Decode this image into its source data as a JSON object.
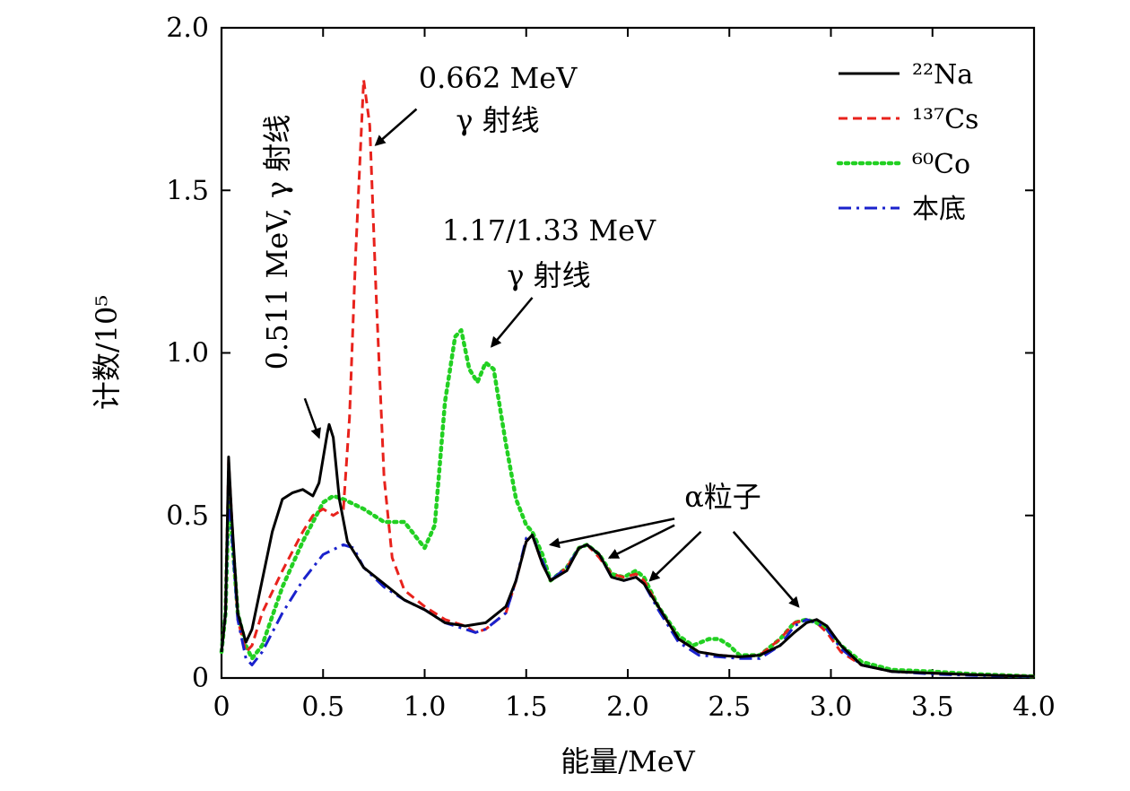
{
  "chart_data": {
    "type": "line",
    "xlabel": "能量/MeV",
    "ylabel": "计数/10⁵",
    "xlim": [
      0,
      4.0
    ],
    "ylim": [
      0,
      2.0
    ],
    "xticks": [
      "0",
      "0.5",
      "1.0",
      "1.5",
      "2.0",
      "2.5",
      "3.0",
      "3.5",
      "4.0"
    ],
    "yticks": [
      "0",
      "0.5",
      "1.0",
      "1.5",
      "2.0"
    ],
    "grid": false,
    "legend_position": "top-right",
    "series": [
      {
        "name": "²²Na",
        "color": "#000000",
        "dash": "solid",
        "points": [
          [
            0,
            0.08
          ],
          [
            0.02,
            0.2
          ],
          [
            0.035,
            0.68
          ],
          [
            0.05,
            0.5
          ],
          [
            0.08,
            0.2
          ],
          [
            0.12,
            0.11
          ],
          [
            0.15,
            0.15
          ],
          [
            0.2,
            0.3
          ],
          [
            0.25,
            0.45
          ],
          [
            0.3,
            0.55
          ],
          [
            0.35,
            0.57
          ],
          [
            0.4,
            0.58
          ],
          [
            0.45,
            0.56
          ],
          [
            0.48,
            0.6
          ],
          [
            0.52,
            0.75
          ],
          [
            0.53,
            0.78
          ],
          [
            0.55,
            0.74
          ],
          [
            0.58,
            0.55
          ],
          [
            0.62,
            0.42
          ],
          [
            0.7,
            0.34
          ],
          [
            0.8,
            0.29
          ],
          [
            0.9,
            0.24
          ],
          [
            1.0,
            0.21
          ],
          [
            1.1,
            0.17
          ],
          [
            1.2,
            0.16
          ],
          [
            1.3,
            0.17
          ],
          [
            1.4,
            0.22
          ],
          [
            1.45,
            0.3
          ],
          [
            1.5,
            0.42
          ],
          [
            1.53,
            0.44
          ],
          [
            1.58,
            0.35
          ],
          [
            1.62,
            0.3
          ],
          [
            1.7,
            0.33
          ],
          [
            1.76,
            0.4
          ],
          [
            1.8,
            0.41
          ],
          [
            1.86,
            0.38
          ],
          [
            1.92,
            0.31
          ],
          [
            1.98,
            0.3
          ],
          [
            2.04,
            0.31
          ],
          [
            2.08,
            0.29
          ],
          [
            2.15,
            0.22
          ],
          [
            2.25,
            0.12
          ],
          [
            2.35,
            0.08
          ],
          [
            2.45,
            0.07
          ],
          [
            2.55,
            0.065
          ],
          [
            2.65,
            0.07
          ],
          [
            2.75,
            0.1
          ],
          [
            2.82,
            0.14
          ],
          [
            2.88,
            0.17
          ],
          [
            2.93,
            0.18
          ],
          [
            2.98,
            0.16
          ],
          [
            3.05,
            0.1
          ],
          [
            3.15,
            0.04
          ],
          [
            3.3,
            0.02
          ],
          [
            3.5,
            0.015
          ],
          [
            3.7,
            0.01
          ],
          [
            4.0,
            0.005
          ]
        ]
      },
      {
        "name": "¹³⁷Cs",
        "color": "#e8221c",
        "dash": "dashed",
        "points": [
          [
            0,
            0.08
          ],
          [
            0.02,
            0.2
          ],
          [
            0.035,
            0.67
          ],
          [
            0.05,
            0.5
          ],
          [
            0.08,
            0.18
          ],
          [
            0.12,
            0.08
          ],
          [
            0.15,
            0.1
          ],
          [
            0.2,
            0.2
          ],
          [
            0.3,
            0.33
          ],
          [
            0.4,
            0.45
          ],
          [
            0.45,
            0.5
          ],
          [
            0.5,
            0.52
          ],
          [
            0.55,
            0.5
          ],
          [
            0.6,
            0.52
          ],
          [
            0.63,
            0.8
          ],
          [
            0.66,
            1.3
          ],
          [
            0.7,
            1.84
          ],
          [
            0.73,
            1.7
          ],
          [
            0.76,
            1.2
          ],
          [
            0.8,
            0.62
          ],
          [
            0.84,
            0.37
          ],
          [
            0.9,
            0.27
          ],
          [
            1.0,
            0.22
          ],
          [
            1.1,
            0.18
          ],
          [
            1.2,
            0.16
          ],
          [
            1.25,
            0.14
          ],
          [
            1.3,
            0.15
          ],
          [
            1.4,
            0.2
          ],
          [
            1.45,
            0.3
          ],
          [
            1.5,
            0.42
          ],
          [
            1.53,
            0.44
          ],
          [
            1.58,
            0.35
          ],
          [
            1.62,
            0.3
          ],
          [
            1.7,
            0.34
          ],
          [
            1.76,
            0.4
          ],
          [
            1.8,
            0.41
          ],
          [
            1.86,
            0.37
          ],
          [
            1.92,
            0.32
          ],
          [
            1.98,
            0.31
          ],
          [
            2.04,
            0.32
          ],
          [
            2.08,
            0.3
          ],
          [
            2.15,
            0.22
          ],
          [
            2.25,
            0.12
          ],
          [
            2.35,
            0.08
          ],
          [
            2.45,
            0.07
          ],
          [
            2.55,
            0.065
          ],
          [
            2.65,
            0.07
          ],
          [
            2.75,
            0.12
          ],
          [
            2.82,
            0.17
          ],
          [
            2.88,
            0.18
          ],
          [
            2.93,
            0.17
          ],
          [
            2.98,
            0.14
          ],
          [
            3.05,
            0.08
          ],
          [
            3.15,
            0.04
          ],
          [
            3.3,
            0.02
          ],
          [
            3.5,
            0.015
          ],
          [
            3.7,
            0.01
          ],
          [
            4.0,
            0.005
          ]
        ]
      },
      {
        "name": "⁶⁰Co",
        "color": "#22d022",
        "dash": "dotted",
        "points": [
          [
            0,
            0.08
          ],
          [
            0.02,
            0.2
          ],
          [
            0.035,
            0.55
          ],
          [
            0.05,
            0.45
          ],
          [
            0.08,
            0.2
          ],
          [
            0.12,
            0.1
          ],
          [
            0.15,
            0.06
          ],
          [
            0.2,
            0.1
          ],
          [
            0.3,
            0.28
          ],
          [
            0.4,
            0.42
          ],
          [
            0.5,
            0.54
          ],
          [
            0.55,
            0.56
          ],
          [
            0.6,
            0.55
          ],
          [
            0.7,
            0.52
          ],
          [
            0.8,
            0.48
          ],
          [
            0.9,
            0.48
          ],
          [
            0.95,
            0.44
          ],
          [
            1.0,
            0.4
          ],
          [
            1.05,
            0.47
          ],
          [
            1.1,
            0.85
          ],
          [
            1.15,
            1.05
          ],
          [
            1.18,
            1.07
          ],
          [
            1.22,
            0.95
          ],
          [
            1.26,
            0.91
          ],
          [
            1.3,
            0.97
          ],
          [
            1.34,
            0.95
          ],
          [
            1.4,
            0.72
          ],
          [
            1.45,
            0.55
          ],
          [
            1.5,
            0.47
          ],
          [
            1.53,
            0.45
          ],
          [
            1.58,
            0.38
          ],
          [
            1.62,
            0.3
          ],
          [
            1.7,
            0.34
          ],
          [
            1.76,
            0.4
          ],
          [
            1.8,
            0.41
          ],
          [
            1.86,
            0.38
          ],
          [
            1.92,
            0.32
          ],
          [
            1.98,
            0.31
          ],
          [
            2.04,
            0.33
          ],
          [
            2.08,
            0.31
          ],
          [
            2.15,
            0.22
          ],
          [
            2.25,
            0.13
          ],
          [
            2.32,
            0.1
          ],
          [
            2.4,
            0.12
          ],
          [
            2.45,
            0.12
          ],
          [
            2.5,
            0.1
          ],
          [
            2.55,
            0.07
          ],
          [
            2.65,
            0.07
          ],
          [
            2.75,
            0.12
          ],
          [
            2.82,
            0.17
          ],
          [
            2.88,
            0.18
          ],
          [
            2.93,
            0.17
          ],
          [
            2.98,
            0.15
          ],
          [
            3.05,
            0.1
          ],
          [
            3.15,
            0.05
          ],
          [
            3.3,
            0.025
          ],
          [
            3.5,
            0.02
          ],
          [
            3.7,
            0.012
          ],
          [
            4.0,
            0.005
          ]
        ]
      },
      {
        "name": "本底",
        "color": "#1a22cc",
        "dash": "dashdot",
        "points": [
          [
            0,
            0.08
          ],
          [
            0.02,
            0.2
          ],
          [
            0.035,
            0.58
          ],
          [
            0.05,
            0.45
          ],
          [
            0.08,
            0.18
          ],
          [
            0.12,
            0.06
          ],
          [
            0.15,
            0.04
          ],
          [
            0.2,
            0.08
          ],
          [
            0.3,
            0.2
          ],
          [
            0.4,
            0.3
          ],
          [
            0.5,
            0.38
          ],
          [
            0.6,
            0.41
          ],
          [
            0.65,
            0.4
          ],
          [
            0.7,
            0.34
          ],
          [
            0.8,
            0.28
          ],
          [
            0.9,
            0.24
          ],
          [
            1.0,
            0.21
          ],
          [
            1.1,
            0.17
          ],
          [
            1.2,
            0.15
          ],
          [
            1.25,
            0.14
          ],
          [
            1.3,
            0.15
          ],
          [
            1.4,
            0.2
          ],
          [
            1.45,
            0.3
          ],
          [
            1.5,
            0.43
          ],
          [
            1.53,
            0.44
          ],
          [
            1.58,
            0.36
          ],
          [
            1.62,
            0.3
          ],
          [
            1.7,
            0.34
          ],
          [
            1.76,
            0.4
          ],
          [
            1.8,
            0.41
          ],
          [
            1.86,
            0.38
          ],
          [
            1.92,
            0.31
          ],
          [
            1.98,
            0.3
          ],
          [
            2.04,
            0.31
          ],
          [
            2.08,
            0.29
          ],
          [
            2.15,
            0.21
          ],
          [
            2.25,
            0.11
          ],
          [
            2.35,
            0.07
          ],
          [
            2.45,
            0.065
          ],
          [
            2.55,
            0.06
          ],
          [
            2.65,
            0.06
          ],
          [
            2.75,
            0.1
          ],
          [
            2.82,
            0.16
          ],
          [
            2.88,
            0.18
          ],
          [
            2.93,
            0.17
          ],
          [
            2.98,
            0.15
          ],
          [
            3.05,
            0.09
          ],
          [
            3.15,
            0.04
          ],
          [
            3.3,
            0.02
          ],
          [
            3.5,
            0.012
          ],
          [
            3.7,
            0.008
          ],
          [
            4.0,
            0.004
          ]
        ]
      }
    ],
    "annotations": [
      {
        "lines": [
          "0.662 MeV",
          "γ 射线"
        ],
        "arrow_tip": [
          0.76,
          1.64
        ],
        "arrow_tail": [
          0.96,
          1.75
        ]
      },
      {
        "lines": [
          "1.17/1.33 MeV",
          "γ 射线"
        ],
        "arrow_tip": [
          1.33,
          1.02
        ],
        "arrow_tail": [
          1.53,
          1.17
        ]
      },
      {
        "lines": [
          "0.511 MeV, γ 射线"
        ],
        "arrow_tip": [
          0.48,
          0.74
        ],
        "arrow_tail": [
          0.41,
          0.86
        ]
      },
      {
        "lines": [
          "α粒子"
        ],
        "arrows": [
          {
            "tip": [
              1.62,
              0.41
            ],
            "tail": [
              2.23,
              0.49
            ]
          },
          {
            "tip": [
              1.91,
              0.37
            ],
            "tail": [
              2.23,
              0.47
            ]
          },
          {
            "tip": [
              2.11,
              0.3
            ],
            "tail": [
              2.36,
              0.45
            ]
          },
          {
            "tip": [
              2.84,
              0.22
            ],
            "tail": [
              2.52,
              0.45
            ]
          }
        ]
      }
    ]
  }
}
